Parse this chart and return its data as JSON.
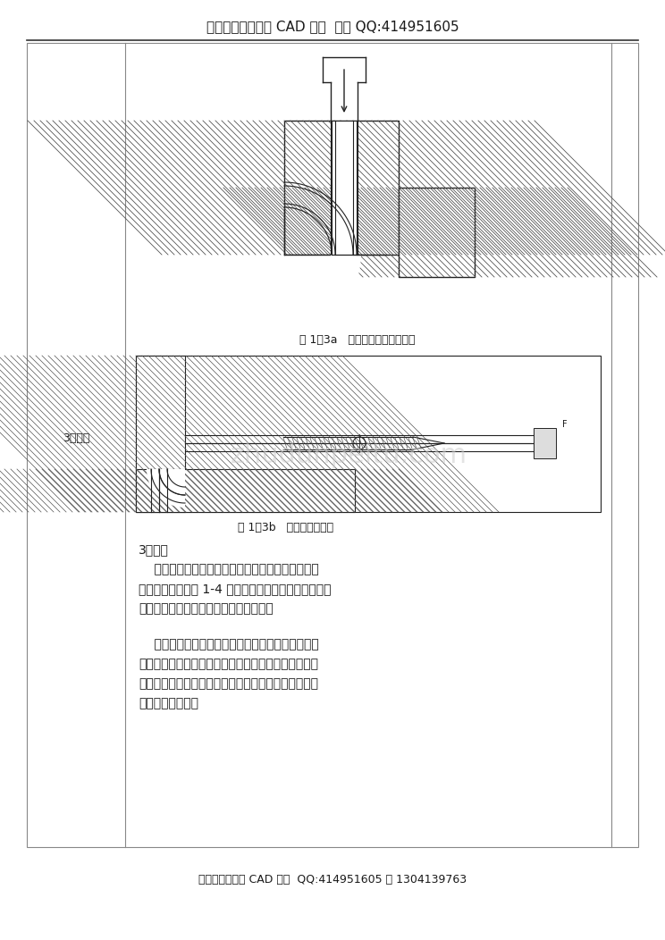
{
  "header_text": "购买文档就送对应 CAD 图纸  咨询 QQ:414951605",
  "footer_text": "下载文档送全套 CAD 图纸  QQ:414951605 或 1304139763",
  "fig1a_caption": "图 1－3a   型模式冷推弯管示意图",
  "fig1b_caption": "图 1－3b   芯棒式热推弯管",
  "section_label": "3．绕弯",
  "para1_title": "3．绕弯",
  "bg_color": "#ffffff",
  "text_color": "#1a1a1a",
  "border_color": "#888888",
  "hatch_color": "#555555",
  "line_color": "#222222",
  "watermark": "zhudunpeitu.com",
  "para1_lines": [
    "    绕弯使最常用的弯管方法，包括碾压式和拉拔式，",
    "其工作原理如下图 1-4 所示，按弯管设备的不同，绕弯",
    "又可以分为手工弯管和弯管机弯管两类。"
  ],
  "para2_lines": [
    "    手工弯管是利用简单的弯管装置对管坯进行弯曲加",
    "工。它不需要专用的弯管设备，弯管装置制造成本低，",
    "调节使用方便，但劳动量大，生产率低，主要应用于小",
    "批量生产的场合。"
  ]
}
